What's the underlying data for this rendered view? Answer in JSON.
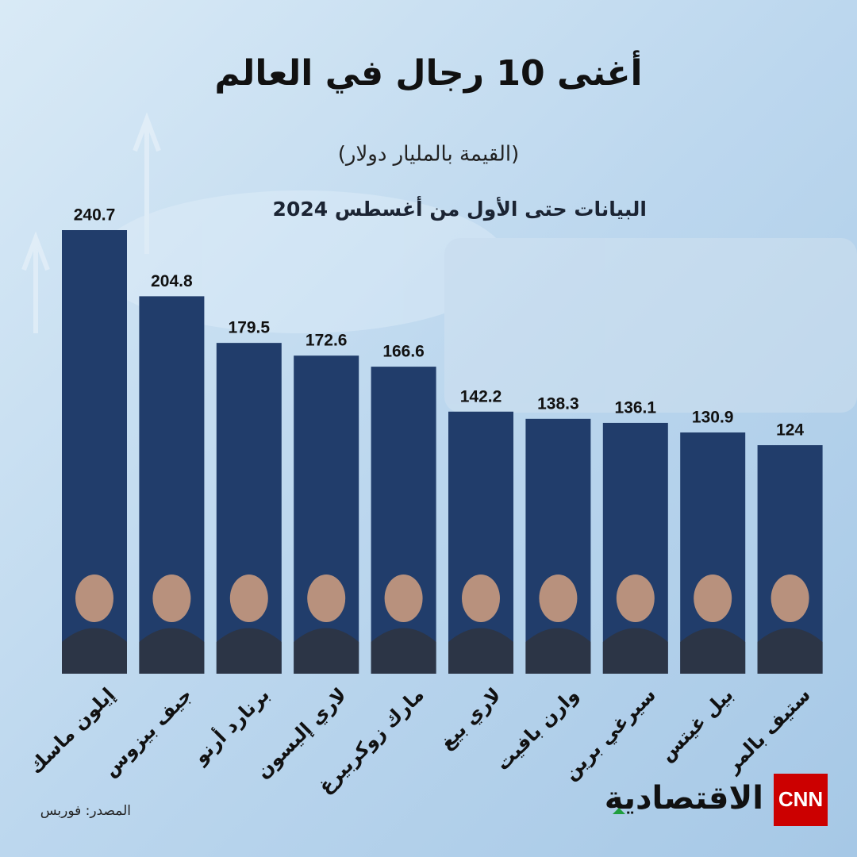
{
  "chart_data": {
    "type": "bar",
    "title": "أغنى 10 رجال في العالم",
    "subtitle": "(القيمة بالمليار دولار)",
    "note": "البيانات حتى الأول من أغسطس 2024",
    "source": "المصدر: فوربس",
    "brand": "الاقتصادية",
    "logo": "CNN",
    "categories": [
      "إيلون ماسك",
      "جيف بيزوس",
      "برنارد أرنو",
      "لاري إليسون",
      "مارك زوكربيرغ",
      "لاري بيغ",
      "وارن بافيت",
      "سيرغي برين",
      "بيل غيتس",
      "ستيف بالمر"
    ],
    "values": [
      240.7,
      204.8,
      179.5,
      172.6,
      166.6,
      142.2,
      138.3,
      136.1,
      130.9,
      124
    ],
    "color": "#213d6b"
  }
}
